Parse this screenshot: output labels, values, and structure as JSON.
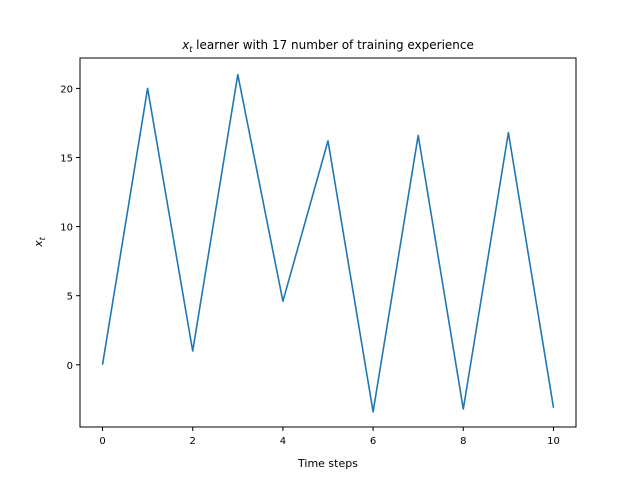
{
  "chart_data": {
    "type": "line",
    "title_main": "x",
    "title_sub": "t",
    "title_rest": " learner with 17 number of training experience",
    "xlabel": "Time steps",
    "ylabel_main": "x",
    "ylabel_sub": "t",
    "xlim": [
      -0.5,
      10.5
    ],
    "ylim": [
      -4.5,
      22.2
    ],
    "xticks": [
      0,
      2,
      4,
      6,
      8,
      10
    ],
    "yticks": [
      0,
      5,
      10,
      15,
      20
    ],
    "grid": false,
    "series": [
      {
        "color": "#1f77b4",
        "x": [
          0,
          1,
          2,
          3,
          4,
          5,
          6,
          7,
          8,
          9,
          10
        ],
        "y": [
          0,
          20.0,
          1.0,
          21.0,
          4.6,
          16.2,
          -3.4,
          16.6,
          -3.2,
          16.8,
          -3.1
        ]
      }
    ]
  }
}
